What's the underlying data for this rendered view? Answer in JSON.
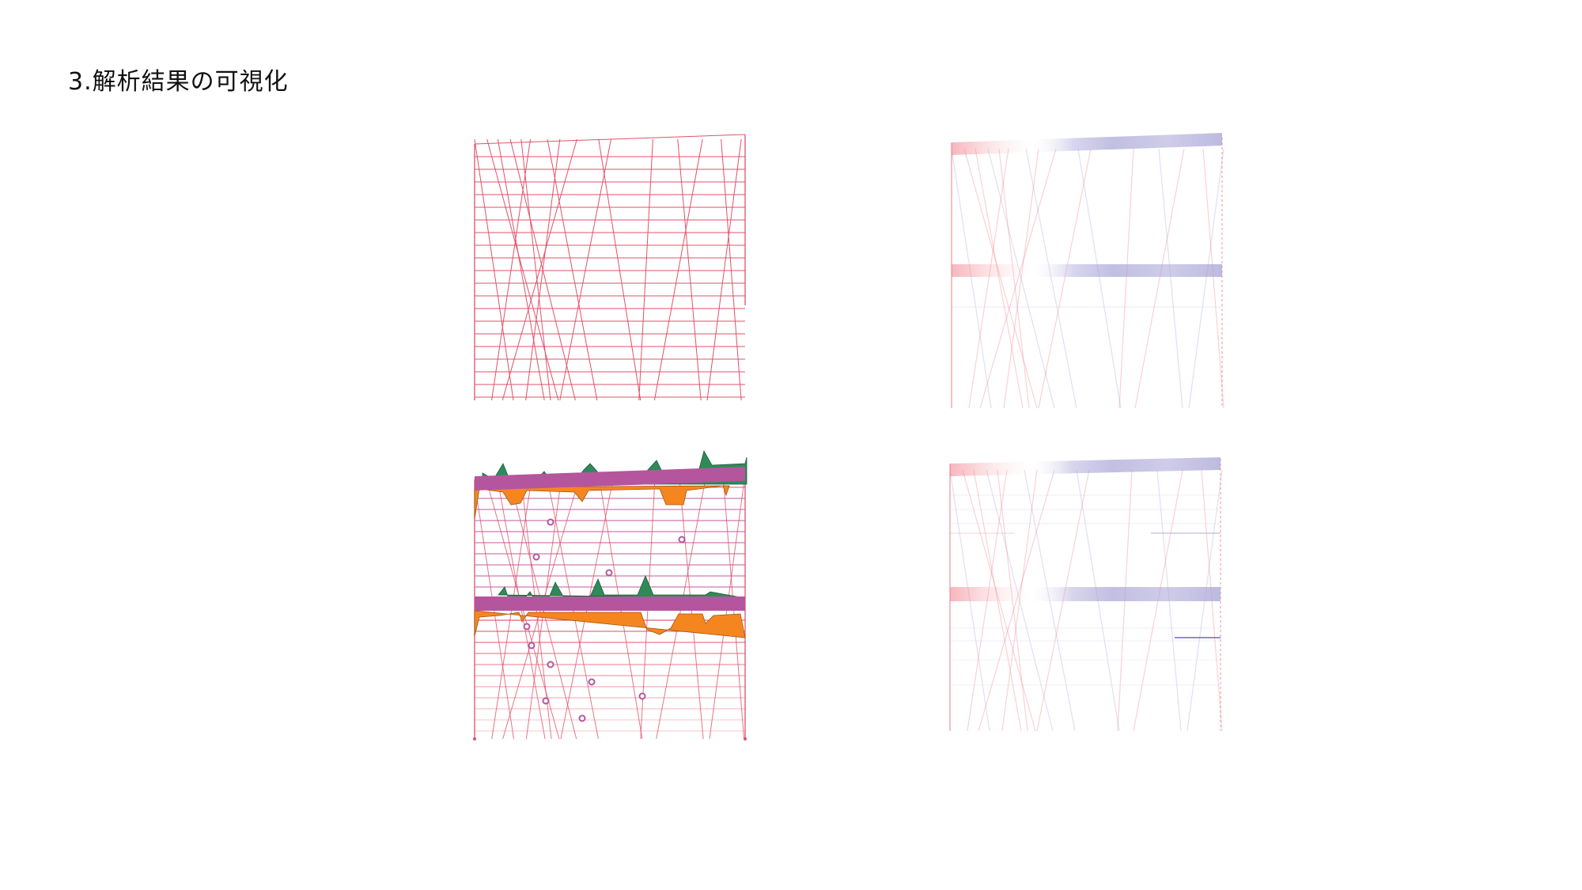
{
  "page": {
    "heading": "3.解析結果の可視化"
  },
  "panels": {
    "frame_model": {
      "line_color": "#e0526a",
      "horizontal_count": 21,
      "diagonal_count": 14
    },
    "stress_map_2_floor": {
      "tension_color": "#ef7c88",
      "compression_color": "#a7a3d6"
    },
    "force_diagram": {
      "beam_color": "#b5559e",
      "moment_positive_color": "#2e8b57",
      "moment_negative_color": "#f5861f",
      "hinge_color": "#b5559e",
      "frame_line_color": "#e0526a",
      "inner_line_color": "#c763a4"
    },
    "stress_map_3_floor": {
      "tension_color": "#ef7c88",
      "compression_color": "#a7a3d6"
    }
  }
}
